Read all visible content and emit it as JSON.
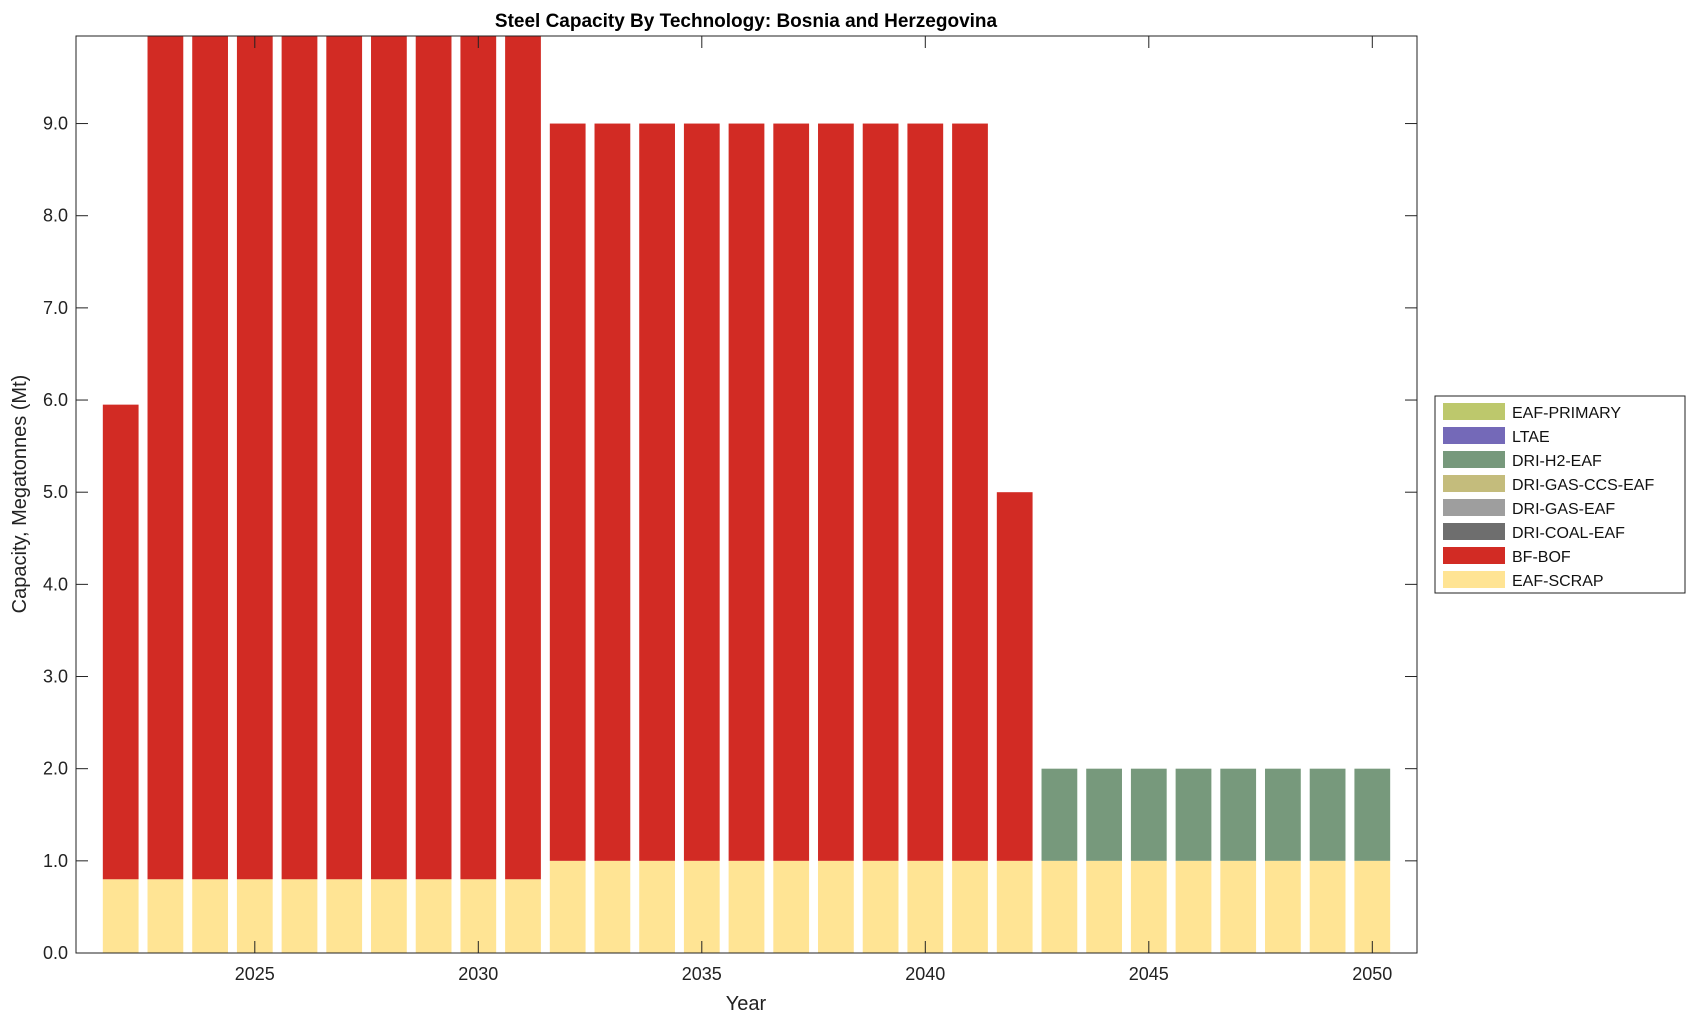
{
  "chart_data": {
    "type": "bar",
    "stacked": true,
    "title": "Steel Capacity By Technology: Bosnia and Herzegovina",
    "xlabel": "Year",
    "ylabel": "Capacity, Megatonnes (Mt)",
    "xlim": [
      2021,
      2051
    ],
    "ylim": [
      0,
      9.95
    ],
    "xticks": [
      2025,
      2030,
      2035,
      2040,
      2045,
      2050
    ],
    "yticks": [
      "0.0",
      "1.0",
      "2.0",
      "3.0",
      "4.0",
      "5.0",
      "6.0",
      "7.0",
      "8.0",
      "9.0"
    ],
    "grid": false,
    "legend_position": "outside-right",
    "x": [
      2022,
      2023,
      2024,
      2025,
      2026,
      2027,
      2028,
      2029,
      2030,
      2031,
      2032,
      2033,
      2034,
      2035,
      2036,
      2037,
      2038,
      2039,
      2040,
      2041,
      2042,
      2043,
      2044,
      2045,
      2046,
      2047,
      2048,
      2049,
      2050
    ],
    "series": [
      {
        "name": "EAF-SCRAP",
        "color": "#FFE494",
        "values": [
          0.8,
          0.8,
          0.8,
          0.8,
          0.8,
          0.8,
          0.8,
          0.8,
          0.8,
          0.8,
          1,
          1,
          1,
          1,
          1,
          1,
          1,
          1,
          1,
          1,
          1,
          1,
          1,
          1,
          1,
          1,
          1,
          1,
          1
        ]
      },
      {
        "name": "BF-BOF",
        "color": "#D22B24",
        "values": [
          5.15,
          9.2,
          9.2,
          9.2,
          9.2,
          9.2,
          9.2,
          9.2,
          9.2,
          9.2,
          8,
          8,
          8,
          8,
          8,
          8,
          8,
          8,
          8,
          8,
          4,
          0,
          0,
          0,
          0,
          0,
          0,
          0,
          0
        ]
      },
      {
        "name": "DRI-COAL-EAF",
        "color": "#6E6E6E",
        "values": [
          0,
          0,
          0,
          0,
          0,
          0,
          0,
          0,
          0,
          0,
          0,
          0,
          0,
          0,
          0,
          0,
          0,
          0,
          0,
          0,
          0,
          0,
          0,
          0,
          0,
          0,
          0,
          0,
          0
        ]
      },
      {
        "name": "DRI-GAS-EAF",
        "color": "#9E9E9E",
        "values": [
          0,
          0,
          0,
          0,
          0,
          0,
          0,
          0,
          0,
          0,
          0,
          0,
          0,
          0,
          0,
          0,
          0,
          0,
          0,
          0,
          0,
          0,
          0,
          0,
          0,
          0,
          0,
          0,
          0
        ]
      },
      {
        "name": "DRI-GAS-CCS-EAF",
        "color": "#C4BC7C",
        "values": [
          0,
          0,
          0,
          0,
          0,
          0,
          0,
          0,
          0,
          0,
          0,
          0,
          0,
          0,
          0,
          0,
          0,
          0,
          0,
          0,
          0,
          0,
          0,
          0,
          0,
          0,
          0,
          0,
          0
        ]
      },
      {
        "name": "DRI-H2-EAF",
        "color": "#77997C",
        "values": [
          0,
          0,
          0,
          0,
          0,
          0,
          0,
          0,
          0,
          0,
          0,
          0,
          0,
          0,
          0,
          0,
          0,
          0,
          0,
          0,
          0,
          1,
          1,
          1,
          1,
          1,
          1,
          1,
          1
        ]
      },
      {
        "name": "LTAE",
        "color": "#7469B8",
        "values": [
          0,
          0,
          0,
          0,
          0,
          0,
          0,
          0,
          0,
          0,
          0,
          0,
          0,
          0,
          0,
          0,
          0,
          0,
          0,
          0,
          0,
          0,
          0,
          0,
          0,
          0,
          0,
          0,
          0
        ]
      },
      {
        "name": "EAF-PRIMARY",
        "color": "#BDC86C",
        "values": [
          0,
          0,
          0,
          0,
          0,
          0,
          0,
          0,
          0,
          0,
          0,
          0,
          0,
          0,
          0,
          0,
          0,
          0,
          0,
          0,
          0,
          0,
          0,
          0,
          0,
          0,
          0,
          0,
          0
        ]
      }
    ],
    "legend_order": [
      "EAF-PRIMARY",
      "LTAE",
      "DRI-H2-EAF",
      "DRI-GAS-CCS-EAF",
      "DRI-GAS-EAF",
      "DRI-COAL-EAF",
      "BF-BOF",
      "EAF-SCRAP"
    ]
  }
}
